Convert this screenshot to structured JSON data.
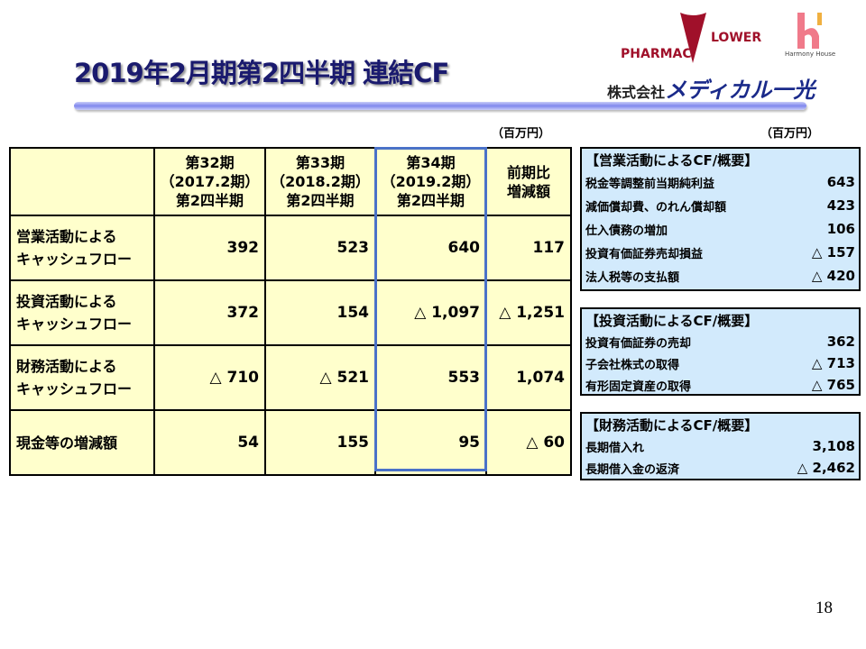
{
  "title": "2019年2月期第2四半期 連結CF",
  "logos": {
    "pharmac": "PHARMAC FLOWER",
    "pharmac_left": "PHARMAC",
    "pharmac_right": "LOWER",
    "harmony": "Harmony House",
    "company": "株式会社メディカル一光",
    "company_prefix": "株式会社",
    "company_name": "メディカル一光"
  },
  "unit": "（百万円）",
  "table": {
    "headers": [
      [
        "第32期",
        "（2017.2期）",
        "第2四半期"
      ],
      [
        "第33期",
        "（2018.2期）",
        "第2四半期"
      ],
      [
        "第34期",
        "（2019.2期）",
        "第2四半期"
      ],
      [
        "前期比",
        "増減額"
      ]
    ],
    "rows": [
      {
        "label": [
          "営業活動による",
          "キャッシュフロー"
        ],
        "values": [
          "392",
          "523",
          "640",
          "117"
        ]
      },
      {
        "label": [
          "投資活動による",
          "キャッシュフロー"
        ],
        "values": [
          "372",
          "154",
          "△ 1,097",
          "△ 1,251"
        ]
      },
      {
        "label": [
          "財務活動による",
          "キャッシュフロー"
        ],
        "values": [
          "△ 710",
          "△ 521",
          "553",
          "1,074"
        ]
      },
      {
        "label": [
          "現金等の増減額"
        ],
        "values": [
          "54",
          "155",
          "95",
          "△ 60"
        ]
      }
    ]
  },
  "panels": [
    {
      "title": "【営業活動によるCF/概要】",
      "items": [
        [
          "税金等調整前当期純利益",
          "643"
        ],
        [
          "減価償却費、のれん償却額",
          "423"
        ],
        [
          "仕入債務の増加",
          "106"
        ],
        [
          "投資有価証券売却損益",
          "△ 157"
        ],
        [
          "法人税等の支払額",
          "△ 420"
        ]
      ]
    },
    {
      "title": "【投資活動によるCF/概要】",
      "items": [
        [
          "投資有価証券の売却",
          "362"
        ],
        [
          "子会社株式の取得",
          "△ 713"
        ],
        [
          "有形固定資産の取得",
          "△ 765"
        ]
      ]
    },
    {
      "title": "【財務活動によるCF/概要】",
      "items": [
        [
          "長期借入れ",
          "3,108"
        ],
        [
          "長期借入金の返済",
          "△ 2,462"
        ]
      ]
    }
  ],
  "page_number": "18",
  "colors": {
    "title": "#1a1a6e",
    "table_bg": "#ffffcc",
    "highlight_border": "#4a72c8",
    "panel_bg": "#d2eafc",
    "logo_red": "#a0102a",
    "logo_pink": "#f07a8a",
    "logo_navy": "#1a2a8a"
  }
}
